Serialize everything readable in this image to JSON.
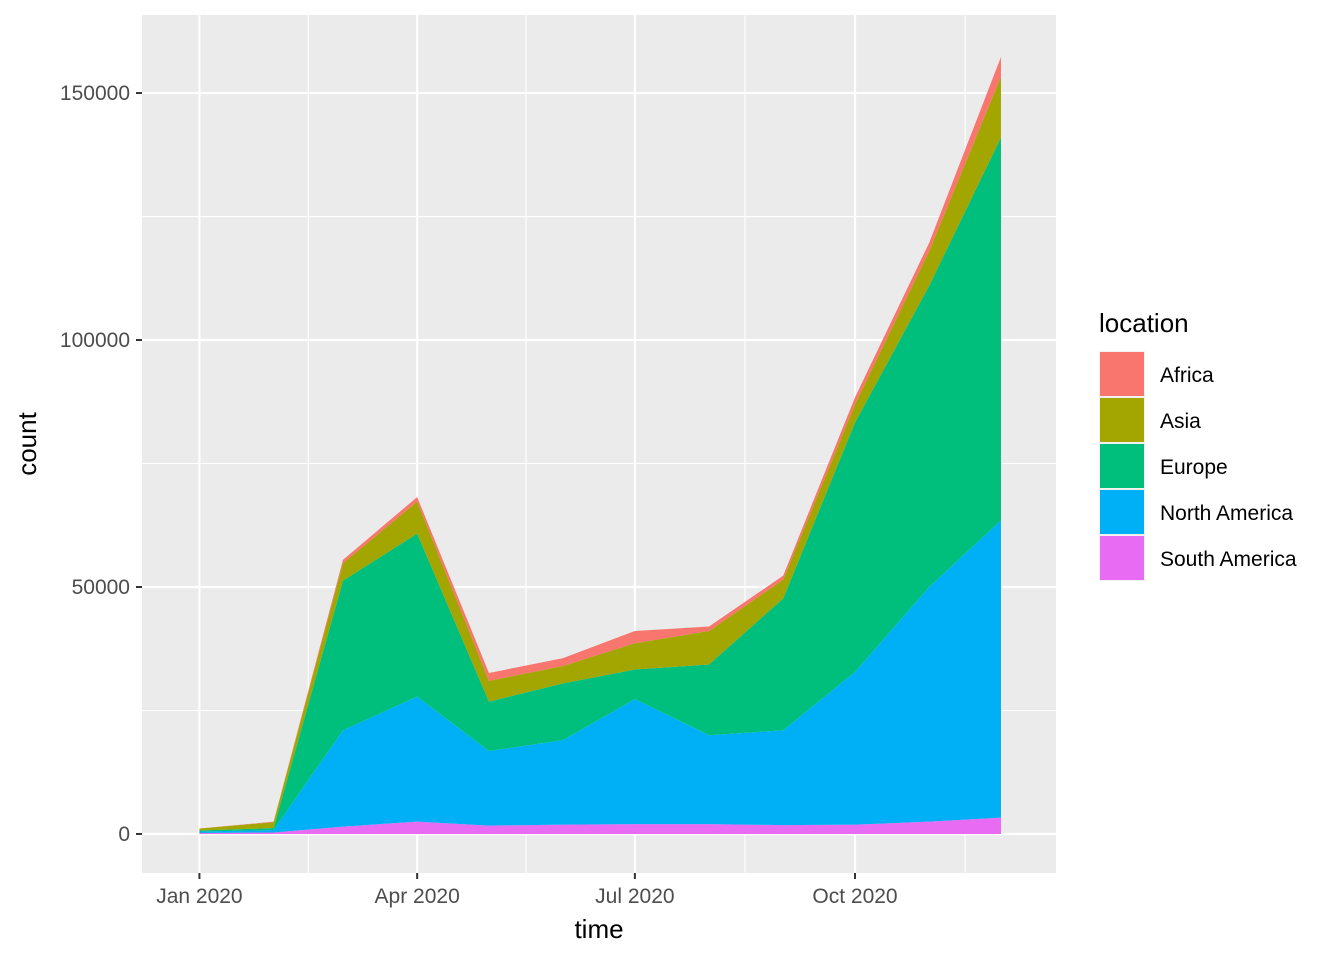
{
  "chart_data": {
    "type": "area",
    "stacked": true,
    "xlabel": "time",
    "ylabel": "count",
    "x": [
      "2020-01-01",
      "2020-02-01",
      "2020-03-01",
      "2020-04-01",
      "2020-05-01",
      "2020-06-01",
      "2020-07-01",
      "2020-08-01",
      "2020-09-01",
      "2020-10-01",
      "2020-11-01",
      "2020-12-01"
    ],
    "xlim": [
      "2019-12-08",
      "2020-12-24"
    ],
    "ylim": [
      -7900,
      165800
    ],
    "x_ticks": [
      {
        "date": "2020-01-01",
        "label": "Jan 2020"
      },
      {
        "date": "2020-04-01",
        "label": "Apr 2020"
      },
      {
        "date": "2020-07-01",
        "label": "Jul 2020"
      },
      {
        "date": "2020-10-01",
        "label": "Oct 2020"
      }
    ],
    "y_ticks": [
      {
        "value": 0,
        "label": "0"
      },
      {
        "value": 50000,
        "label": "50000"
      },
      {
        "value": 100000,
        "label": "100000"
      },
      {
        "value": 150000,
        "label": "150000"
      }
    ],
    "grid": true,
    "legend": {
      "title": "location",
      "position": "right"
    },
    "series": [
      {
        "name": "South America",
        "color": "#E76BF3",
        "values": [
          200,
          300,
          1500,
          2500,
          1700,
          1900,
          2000,
          2000,
          1800,
          1900,
          2500,
          3300
        ]
      },
      {
        "name": "North America",
        "color": "#00B0F6",
        "values": [
          300,
          500,
          19500,
          25300,
          15100,
          17100,
          25300,
          18000,
          19200,
          30900,
          47500,
          60200
        ]
      },
      {
        "name": "Europe",
        "color": "#00BF7D",
        "values": [
          200,
          400,
          30300,
          33000,
          10000,
          11500,
          6000,
          14300,
          26700,
          50500,
          61000,
          77500
        ]
      },
      {
        "name": "Asia",
        "color": "#A3A500",
        "values": [
          400,
          1200,
          3500,
          6500,
          4200,
          3500,
          5300,
          6800,
          3800,
          3700,
          7000,
          12300
        ]
      },
      {
        "name": "Africa",
        "color": "#F8766D",
        "values": [
          0,
          100,
          700,
          900,
          1600,
          1600,
          2500,
          900,
          800,
          1400,
          1700,
          4000
        ]
      }
    ]
  }
}
